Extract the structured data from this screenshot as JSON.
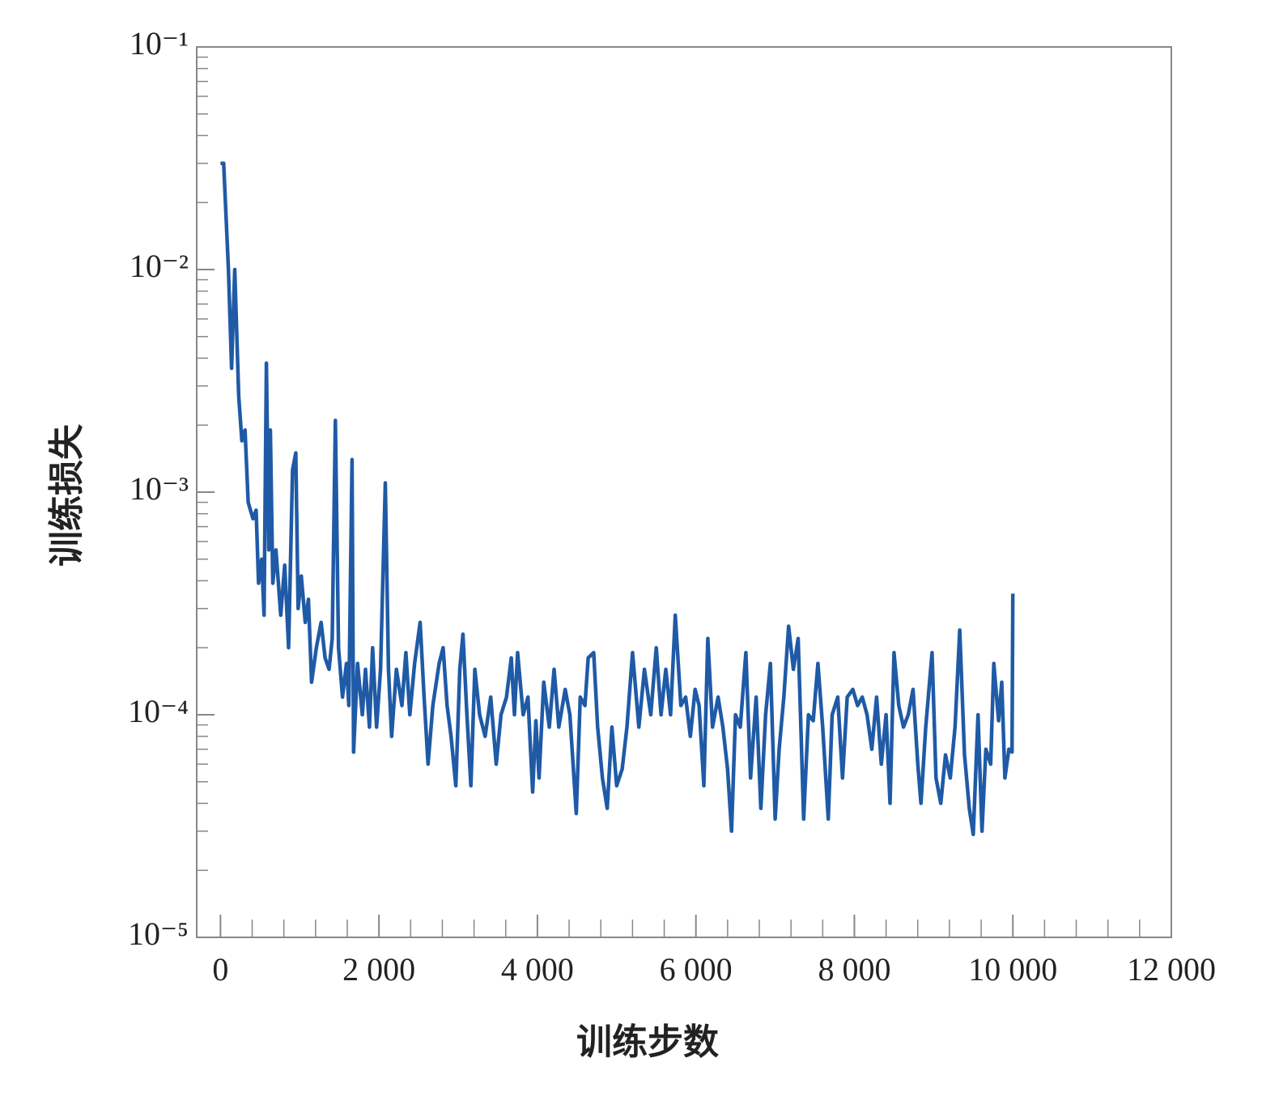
{
  "chart_data": {
    "type": "line",
    "xlabel": "训练步数",
    "ylabel": "训练损失",
    "log_y": true,
    "color": "#1f5aa6",
    "xlim": [
      -300,
      12000
    ],
    "xticks": [
      0,
      {
        "value": 2000,
        "label": "2 000"
      },
      {
        "value": 4000,
        "label": "4 000"
      },
      {
        "value": 6000,
        "label": "6 000"
      },
      {
        "value": 8000,
        "label": "8 000"
      },
      {
        "value": 10000,
        "label": "10 000"
      },
      {
        "value": 12000,
        "label": "12 000"
      }
    ],
    "ylim": [
      1e-05,
      0.1
    ],
    "yticks": [
      {
        "value": 1e-05,
        "label": "10⁻⁵"
      },
      {
        "value": 0.0001,
        "label": "10⁻⁴"
      },
      {
        "value": 0.001,
        "label": "10⁻³"
      },
      {
        "value": 0.01,
        "label": "10⁻²"
      },
      {
        "value": 0.1,
        "label": "10⁻¹"
      }
    ],
    "x": [
      0,
      40,
      100,
      140,
      180,
      230,
      270,
      310,
      350,
      410,
      450,
      480,
      520,
      550,
      580,
      610,
      630,
      660,
      700,
      760,
      810,
      860,
      910,
      950,
      980,
      1020,
      1070,
      1110,
      1150,
      1210,
      1270,
      1320,
      1370,
      1410,
      1450,
      1490,
      1540,
      1590,
      1620,
      1660,
      1680,
      1730,
      1790,
      1830,
      1880,
      1920,
      1970,
      2020,
      2080,
      2120,
      2160,
      2220,
      2290,
      2340,
      2390,
      2450,
      2520,
      2570,
      2620,
      2680,
      2760,
      2810,
      2860,
      2910,
      2970,
      3020,
      3060,
      3110,
      3160,
      3210,
      3270,
      3340,
      3410,
      3480,
      3540,
      3610,
      3670,
      3710,
      3750,
      3820,
      3880,
      3940,
      3980,
      4020,
      4080,
      4150,
      4210,
      4270,
      4350,
      4410,
      4490,
      4540,
      4600,
      4640,
      4710,
      4760,
      4820,
      4880,
      4940,
      5000,
      5070,
      5130,
      5200,
      5280,
      5350,
      5430,
      5500,
      5560,
      5620,
      5680,
      5740,
      5810,
      5870,
      5930,
      5990,
      6040,
      6100,
      6150,
      6210,
      6280,
      6340,
      6400,
      6450,
      6500,
      6560,
      6630,
      6690,
      6760,
      6820,
      6880,
      6940,
      7000,
      7050,
      7110,
      7170,
      7230,
      7290,
      7360,
      7420,
      7480,
      7540,
      7600,
      7670,
      7720,
      7790,
      7850,
      7910,
      7980,
      8040,
      8100,
      8160,
      8220,
      8280,
      8340,
      8400,
      8450,
      8500,
      8560,
      8620,
      8680,
      8740,
      8800,
      8840,
      8900,
      8980,
      9030,
      9090,
      9150,
      9210,
      9270,
      9330,
      9390,
      9450,
      9500,
      9560,
      9610,
      9660,
      9720,
      9760,
      9820,
      9860,
      9900,
      9950,
      9990,
      10000
    ],
    "values": [
      0.03,
      0.03,
      0.01,
      0.0036,
      0.01,
      0.0027,
      0.0017,
      0.0019,
      0.0009,
      0.00076,
      0.00083,
      0.00039,
      0.0005,
      0.00028,
      0.0038,
      0.00055,
      0.0019,
      0.00039,
      0.00055,
      0.00028,
      0.00047,
      0.0002,
      0.00126,
      0.0015,
      0.0003,
      0.00042,
      0.00026,
      0.00033,
      0.00014,
      0.0002,
      0.00026,
      0.00018,
      0.00016,
      0.00022,
      0.0021,
      0.0002,
      0.00012,
      0.00017,
      0.00011,
      0.0014,
      6.8e-05,
      0.00017,
      0.0001,
      0.00016,
      8.8e-05,
      0.0002,
      8.8e-05,
      0.00016,
      0.0011,
      0.00016,
      8e-05,
      0.00016,
      0.00011,
      0.00019,
      0.0001,
      0.00017,
      0.00026,
      0.00012,
      6e-05,
      0.00011,
      0.00017,
      0.0002,
      0.00011,
      8e-05,
      4.8e-05,
      0.00016,
      0.00023,
      0.0001,
      4.8e-05,
      0.00016,
      0.0001,
      8e-05,
      0.00012,
      6e-05,
      0.0001,
      0.00012,
      0.00018,
      0.0001,
      0.00019,
      0.0001,
      0.00012,
      4.5e-05,
      9.4e-05,
      5.2e-05,
      0.00014,
      8.8e-05,
      0.00016,
      8.8e-05,
      0.00013,
      0.0001,
      3.6e-05,
      0.00012,
      0.00011,
      0.00018,
      0.00019,
      8.8e-05,
      5.2e-05,
      3.8e-05,
      8.8e-05,
      4.8e-05,
      5.7e-05,
      8.8e-05,
      0.00019,
      8.8e-05,
      0.00016,
      0.0001,
      0.0002,
      0.0001,
      0.00016,
      0.0001,
      0.00028,
      0.00011,
      0.00012,
      8e-05,
      0.00013,
      0.00011,
      4.8e-05,
      0.00022,
      8.8e-05,
      0.00012,
      8.8e-05,
      5.7e-05,
      3e-05,
      0.0001,
      8.8e-05,
      0.00019,
      5.2e-05,
      0.00012,
      3.8e-05,
      0.0001,
      0.00017,
      3.4e-05,
      7e-05,
      0.00012,
      0.00025,
      0.00016,
      0.00022,
      3.4e-05,
      0.0001,
      9.4e-05,
      0.00017,
      8.8e-05,
      3.4e-05,
      0.0001,
      0.00012,
      5.2e-05,
      0.00012,
      0.00013,
      0.00011,
      0.00012,
      0.0001,
      7e-05,
      0.00012,
      6e-05,
      0.0001,
      4e-05,
      0.00019,
      0.00011,
      8.8e-05,
      0.0001,
      0.00013,
      6e-05,
      4e-05,
      8.8e-05,
      0.00019,
      5.2e-05,
      4e-05,
      6.6e-05,
      5.2e-05,
      8.8e-05,
      0.00024,
      6.6e-05,
      3.8e-05,
      2.9e-05,
      0.0001,
      3e-05,
      7e-05,
      6e-05,
      0.00017,
      9.4e-05,
      0.00014,
      5.2e-05,
      7e-05,
      6.8e-05,
      0.00035
    ]
  }
}
